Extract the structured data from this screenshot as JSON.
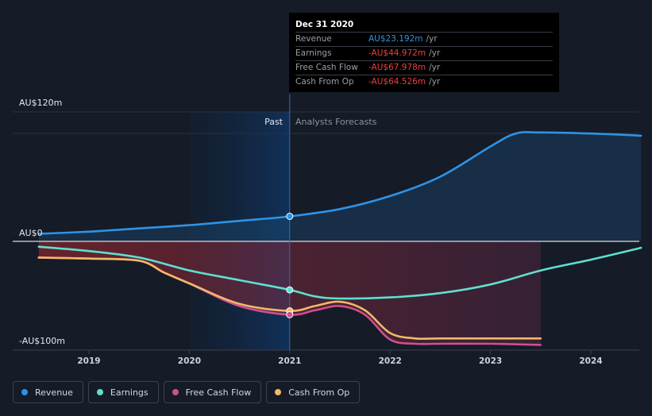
{
  "chart_data": {
    "type": "line",
    "x_ticks": [
      "2019",
      "2020",
      "2021",
      "2022",
      "2023",
      "2024"
    ],
    "y_labels": {
      "top": "AU$120m",
      "zero": "AU$0",
      "bottom": "-AU$100m"
    },
    "ylim": [
      -100,
      120
    ],
    "past_label": "Past",
    "forecast_label": "Analysts Forecasts",
    "split_x": 2021.0,
    "series": [
      {
        "name": "Revenue",
        "color": "#2e93e6",
        "x": [
          2018.5,
          2019.0,
          2019.5,
          2020.0,
          2020.5,
          2021.0,
          2021.5,
          2022.0,
          2022.5,
          2023.0,
          2023.25,
          2023.5,
          2024.0,
          2024.5
        ],
        "y": [
          7,
          9,
          12,
          15,
          19,
          23.2,
          30,
          42,
          60,
          88,
          100,
          101,
          100,
          98
        ]
      },
      {
        "name": "Earnings",
        "color": "#5ee0cf",
        "x": [
          2018.5,
          2019.0,
          2019.5,
          2020.0,
          2020.5,
          2021.0,
          2021.25,
          2021.5,
          2022.0,
          2022.5,
          2023.0,
          2023.5,
          2024.0,
          2024.5
        ],
        "y": [
          -5,
          -9,
          -15,
          -27,
          -36,
          -45,
          -51,
          -53,
          -52,
          -48,
          -40,
          -27,
          -17,
          -6
        ]
      },
      {
        "name": "Free Cash Flow",
        "color": "#d14f8f",
        "x": [
          2018.5,
          2019.0,
          2019.5,
          2019.75,
          2020.0,
          2020.5,
          2021.0,
          2021.25,
          2021.5,
          2021.75,
          2022.0,
          2022.25,
          2022.5,
          2023.0,
          2023.5
        ],
        "y": [
          -15,
          -16,
          -18,
          -29,
          -39,
          -60,
          -68,
          -64,
          -60,
          -68,
          -91,
          -95,
          -95,
          -95,
          -96
        ]
      },
      {
        "name": "Cash From Op",
        "color": "#f1b86a",
        "x": [
          2018.5,
          2019.0,
          2019.5,
          2019.75,
          2020.0,
          2020.5,
          2021.0,
          2021.25,
          2021.5,
          2021.75,
          2022.0,
          2022.25,
          2022.5,
          2023.0,
          2023.5
        ],
        "y": [
          -15,
          -16,
          -18,
          -29,
          -39,
          -58,
          -64.5,
          -60,
          -56,
          -64,
          -85,
          -90,
          -90,
          -90,
          -90
        ]
      }
    ],
    "highlight_x": 2021.0,
    "legend_placement": "bottom-left"
  },
  "tooltip": {
    "date": "Dec 31 2020",
    "rows": [
      {
        "label": "Revenue",
        "value": "AU$23.192m",
        "unit": "/yr",
        "color": "#2e93e6"
      },
      {
        "label": "Earnings",
        "value": "-AU$44.972m",
        "unit": "/yr",
        "color": "#e8403f"
      },
      {
        "label": "Free Cash Flow",
        "value": "-AU$67.978m",
        "unit": "/yr",
        "color": "#e8403f"
      },
      {
        "label": "Cash From Op",
        "value": "-AU$64.526m",
        "unit": "/yr",
        "color": "#e8403f"
      }
    ]
  },
  "legend": [
    {
      "label": "Revenue",
      "color": "#2e93e6"
    },
    {
      "label": "Earnings",
      "color": "#5ee0cf"
    },
    {
      "label": "Free Cash Flow",
      "color": "#d14f8f"
    },
    {
      "label": "Cash From Op",
      "color": "#f1b86a"
    }
  ]
}
